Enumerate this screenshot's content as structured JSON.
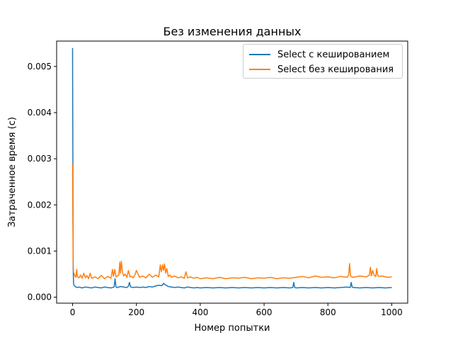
{
  "chart_data": {
    "type": "line",
    "title": "Без изменения данных",
    "xlabel": "Номер попытки",
    "ylabel": "Затраченное время (с)",
    "xlim": [
      -50,
      1050
    ],
    "ylim": [
      -0.00013,
      0.00555
    ],
    "xticks": [
      0,
      200,
      400,
      600,
      800,
      1000
    ],
    "xtick_labels": [
      "0",
      "200",
      "400",
      "600",
      "800",
      "1000"
    ],
    "yticks": [
      0.0,
      0.001,
      0.002,
      0.003,
      0.004,
      0.005
    ],
    "ytick_labels": [
      "0.000",
      "0.001",
      "0.002",
      "0.003",
      "0.004",
      "0.005"
    ],
    "grid": false,
    "legend_position": "top-right",
    "series": [
      {
        "name": "Select с кешированием",
        "color": "#1f77b4",
        "x": [
          0,
          1,
          2,
          3,
          5,
          8,
          10,
          15,
          20,
          30,
          40,
          50,
          60,
          70,
          80,
          90,
          100,
          110,
          120,
          130,
          133,
          136,
          140,
          150,
          160,
          170,
          175,
          178,
          182,
          190,
          200,
          210,
          220,
          230,
          240,
          250,
          260,
          270,
          280,
          285,
          290,
          295,
          300,
          310,
          320,
          330,
          340,
          350,
          360,
          370,
          380,
          390,
          400,
          420,
          440,
          460,
          480,
          500,
          520,
          540,
          560,
          580,
          600,
          620,
          640,
          660,
          680,
          690,
          693,
          696,
          700,
          720,
          740,
          760,
          780,
          800,
          820,
          840,
          860,
          870,
          873,
          876,
          880,
          900,
          920,
          940,
          960,
          980,
          1000
        ],
        "y": [
          0.0054,
          0.0027,
          0.0006,
          0.0003,
          0.00025,
          0.00023,
          0.00022,
          0.00021,
          0.00022,
          0.0002,
          0.00022,
          0.00021,
          0.0002,
          0.00022,
          0.00021,
          0.0002,
          0.00022,
          0.00021,
          0.0002,
          0.00022,
          0.0004,
          0.00022,
          0.00021,
          0.00023,
          0.00022,
          0.00021,
          0.00024,
          0.00032,
          0.00022,
          0.00021,
          0.00022,
          0.00021,
          0.00022,
          0.00021,
          0.00023,
          0.00022,
          0.00024,
          0.00026,
          0.00025,
          0.0003,
          0.00027,
          0.00025,
          0.00023,
          0.00022,
          0.00021,
          0.00022,
          0.00021,
          0.0002,
          0.00022,
          0.00021,
          0.0002,
          0.00021,
          0.0002,
          0.00021,
          0.0002,
          0.00021,
          0.0002,
          0.00021,
          0.0002,
          0.00021,
          0.0002,
          0.00021,
          0.0002,
          0.00021,
          0.0002,
          0.00021,
          0.0002,
          0.00021,
          0.00032,
          0.00021,
          0.0002,
          0.00021,
          0.0002,
          0.00021,
          0.0002,
          0.00021,
          0.0002,
          0.00021,
          0.00022,
          0.00021,
          0.00032,
          0.00022,
          0.00021,
          0.0002,
          0.00021,
          0.0002,
          0.00021,
          0.0002,
          0.00021
        ]
      },
      {
        "name": "Select без кеширования",
        "color": "#ff7f0e",
        "x": [
          0,
          1,
          2,
          3,
          5,
          8,
          10,
          13,
          15,
          20,
          25,
          30,
          35,
          40,
          45,
          50,
          55,
          60,
          70,
          80,
          90,
          100,
          110,
          120,
          125,
          128,
          132,
          136,
          140,
          145,
          148,
          150,
          153,
          156,
          160,
          165,
          170,
          175,
          180,
          185,
          190,
          195,
          200,
          210,
          220,
          230,
          240,
          250,
          260,
          270,
          275,
          278,
          282,
          285,
          288,
          292,
          295,
          300,
          305,
          310,
          320,
          330,
          340,
          350,
          355,
          360,
          370,
          380,
          390,
          400,
          420,
          440,
          460,
          480,
          500,
          520,
          540,
          560,
          580,
          600,
          620,
          640,
          660,
          680,
          700,
          720,
          740,
          760,
          780,
          800,
          820,
          840,
          860,
          865,
          868,
          871,
          875,
          880,
          900,
          920,
          930,
          933,
          936,
          940,
          945,
          950,
          953,
          956,
          960,
          970,
          980,
          990,
          1000
        ],
        "y": [
          0.0029,
          0.0016,
          0.0007,
          0.00055,
          0.0005,
          0.00045,
          0.00043,
          0.0006,
          0.00045,
          0.00042,
          0.00048,
          0.00041,
          0.00052,
          0.00042,
          0.00047,
          0.0004,
          0.00052,
          0.00041,
          0.00044,
          0.0004,
          0.00047,
          0.0004,
          0.00045,
          0.00041,
          0.0006,
          0.00045,
          0.0006,
          0.00044,
          0.00046,
          0.00048,
          0.00076,
          0.00052,
          0.00078,
          0.00055,
          0.00046,
          0.0005,
          0.00043,
          0.00058,
          0.00044,
          0.00045,
          0.00042,
          0.00048,
          0.00058,
          0.00043,
          0.00046,
          0.00042,
          0.0005,
          0.00043,
          0.00048,
          0.00044,
          0.0007,
          0.00055,
          0.0007,
          0.00058,
          0.00072,
          0.00052,
          0.00062,
          0.00045,
          0.00048,
          0.00043,
          0.00046,
          0.00042,
          0.00044,
          0.00041,
          0.00055,
          0.00042,
          0.00044,
          0.00041,
          0.00043,
          0.0004,
          0.00042,
          0.0004,
          0.00043,
          0.0004,
          0.00042,
          0.00041,
          0.00043,
          0.0004,
          0.00042,
          0.00041,
          0.00043,
          0.0004,
          0.00042,
          0.00041,
          0.00043,
          0.00045,
          0.00042,
          0.00046,
          0.00043,
          0.00044,
          0.00042,
          0.00045,
          0.00043,
          0.00048,
          0.00073,
          0.00046,
          0.00044,
          0.00043,
          0.00046,
          0.00044,
          0.00048,
          0.00065,
          0.00046,
          0.00058,
          0.00047,
          0.00045,
          0.00062,
          0.00047,
          0.00045,
          0.00046,
          0.00044,
          0.00043,
          0.00044
        ]
      }
    ]
  }
}
